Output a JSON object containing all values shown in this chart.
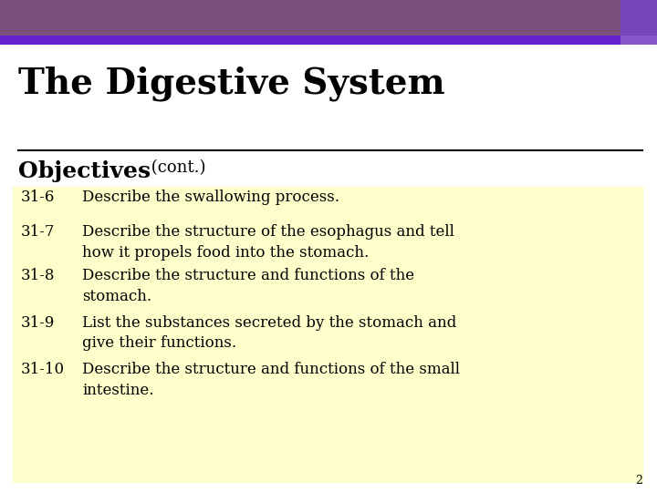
{
  "title": "The Digestive System",
  "subtitle_bold": "Objectives",
  "subtitle_normal": " (cont.)",
  "bg_color": "#ffffff",
  "bar_main_color": "#7b4f7b",
  "bar_accent_color": "#6622cc",
  "bar_small_color": "#7744aa",
  "box_bg_color": "#ffffcc",
  "title_color": "#000000",
  "subtitle_color": "#000000",
  "text_color": "#000000",
  "page_number": "2",
  "items": [
    {
      "number": "31-6",
      "text": "Describe the swallowing process."
    },
    {
      "number": "31-7",
      "text": "Describe the structure of the esophagus and tell\nhow it propels food into the stomach."
    },
    {
      "number": "31-8",
      "text": "Describe the structure and functions of the\nstomach."
    },
    {
      "number": "31-9",
      "text": "List the substances secreted by the stomach and\ngive their functions."
    },
    {
      "number": "31-10",
      "text": "Describe the structure and functions of the small\nintestine."
    }
  ]
}
